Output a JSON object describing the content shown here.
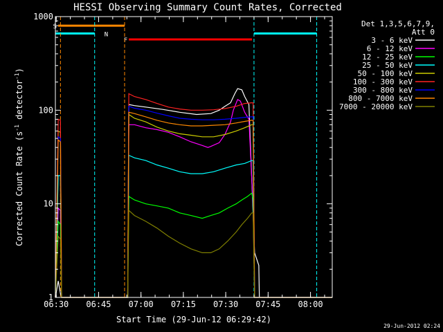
{
  "chart_data": {
    "type": "line",
    "title": "HESSI Observing Summary Count Rates, Corrected",
    "xlabel": "Start Time (29-Jun-12 06:29:42)",
    "ylabel_parts": [
      "Corrected Count Rate (s",
      "-1",
      " detector",
      "-1",
      ")"
    ],
    "x_unit": "minutes since 06:29:42",
    "xlim": [
      0,
      98
    ],
    "ylim": [
      1,
      1000
    ],
    "yscale": "log",
    "xticks": [
      {
        "t": 0.3,
        "label": "06:30"
      },
      {
        "t": 15.3,
        "label": "06:45"
      },
      {
        "t": 30.3,
        "label": "07:00"
      },
      {
        "t": 45.3,
        "label": "07:15"
      },
      {
        "t": 60.3,
        "label": "07:30"
      },
      {
        "t": 75.3,
        "label": "07:45"
      },
      {
        "t": 90.3,
        "label": "08:00"
      }
    ],
    "yticks": [
      {
        "v": 1,
        "label": "1"
      },
      {
        "v": 10,
        "label": "10"
      },
      {
        "v": 100,
        "label": "100"
      },
      {
        "v": 1000,
        "label": "1000"
      }
    ],
    "legend": {
      "header": [
        "Det 1,3,5,6,7,9,",
        "Att 0"
      ],
      "placement": "right"
    },
    "series": [
      {
        "name": "3 - 6 keV",
        "color": "#ffffff",
        "data": [
          [
            0,
            1.0
          ],
          [
            1,
            1.5
          ],
          [
            1.8,
            1.1
          ],
          [
            2.2,
            1.0
          ],
          [
            25.6,
            1.0
          ],
          [
            26,
            115
          ],
          [
            28,
            112
          ],
          [
            32,
            108
          ],
          [
            38,
            102
          ],
          [
            44,
            95
          ],
          [
            50,
            90
          ],
          [
            55,
            92
          ],
          [
            58,
            100
          ],
          [
            60,
            110
          ],
          [
            62,
            120
          ],
          [
            63.5,
            150
          ],
          [
            64.5,
            170
          ],
          [
            66,
            165
          ],
          [
            67,
            140
          ],
          [
            68.5,
            115
          ],
          [
            70.5,
            3.0
          ],
          [
            72,
            2.2
          ],
          [
            72.2,
            1.0
          ],
          [
            98,
            1.0
          ]
        ]
      },
      {
        "name": "6 - 12 keV",
        "color": "#ff00ff",
        "data": [
          [
            0,
            1.0
          ],
          [
            1,
            9.0
          ],
          [
            1.8,
            8.5
          ],
          [
            2.2,
            1.0
          ],
          [
            25.6,
            1.0
          ],
          [
            26,
            70
          ],
          [
            28,
            70
          ],
          [
            32,
            65
          ],
          [
            36,
            62
          ],
          [
            40,
            58
          ],
          [
            44,
            52
          ],
          [
            48,
            46
          ],
          [
            52,
            42
          ],
          [
            54,
            40
          ],
          [
            55,
            41
          ],
          [
            58,
            45
          ],
          [
            60,
            55
          ],
          [
            62,
            75
          ],
          [
            63,
            100
          ],
          [
            64.5,
            130
          ],
          [
            65.5,
            125
          ],
          [
            67,
            95
          ],
          [
            68.5,
            80
          ],
          [
            70,
            9.0
          ],
          [
            70.5,
            1.0
          ],
          [
            98,
            1.0
          ]
        ]
      },
      {
        "name": "12 - 25 keV",
        "color": "#00ff00",
        "data": [
          [
            0,
            1.0
          ],
          [
            1,
            6.5
          ],
          [
            1.8,
            6.0
          ],
          [
            2.2,
            1.0
          ],
          [
            25.6,
            1.0
          ],
          [
            26,
            12
          ],
          [
            28,
            11
          ],
          [
            32,
            10
          ],
          [
            36,
            9.5
          ],
          [
            40,
            9.0
          ],
          [
            44,
            8.0
          ],
          [
            48,
            7.5
          ],
          [
            52,
            7.0
          ],
          [
            55,
            7.5
          ],
          [
            58,
            8.0
          ],
          [
            61,
            9.0
          ],
          [
            64,
            10
          ],
          [
            66,
            11
          ],
          [
            68,
            12
          ],
          [
            69.5,
            13
          ],
          [
            70,
            11
          ],
          [
            70.5,
            1.0
          ],
          [
            98,
            1.0
          ]
        ]
      },
      {
        "name": "25 - 50 keV",
        "color": "#00ffff",
        "data": [
          [
            0,
            1.0
          ],
          [
            1,
            20
          ],
          [
            1.8,
            20
          ],
          [
            2.2,
            1.0
          ],
          [
            25.6,
            1.0
          ],
          [
            26,
            33
          ],
          [
            28,
            31
          ],
          [
            32,
            29
          ],
          [
            36,
            26
          ],
          [
            40,
            24
          ],
          [
            44,
            22
          ],
          [
            48,
            21
          ],
          [
            52,
            21
          ],
          [
            56,
            22
          ],
          [
            60,
            24
          ],
          [
            64,
            26
          ],
          [
            67,
            27
          ],
          [
            69.5,
            29
          ],
          [
            70,
            29
          ],
          [
            70.5,
            1.0
          ],
          [
            98,
            1.0
          ]
        ]
      },
      {
        "name": "50 - 100 keV",
        "color": "#cccc00",
        "data": [
          [
            0,
            1.0
          ],
          [
            1,
            60
          ],
          [
            1.8,
            58
          ],
          [
            2.2,
            1.0
          ],
          [
            25.6,
            1.0
          ],
          [
            26,
            90
          ],
          [
            28,
            82
          ],
          [
            32,
            75
          ],
          [
            36,
            66
          ],
          [
            40,
            60
          ],
          [
            44,
            56
          ],
          [
            48,
            54
          ],
          [
            52,
            52
          ],
          [
            56,
            52
          ],
          [
            60,
            55
          ],
          [
            64,
            60
          ],
          [
            67,
            65
          ],
          [
            69.5,
            70
          ],
          [
            70,
            70
          ],
          [
            70.5,
            1.0
          ],
          [
            98,
            1.0
          ]
        ]
      },
      {
        "name": "100 - 300 keV",
        "color": "#ff2222",
        "data": [
          [
            0,
            1.0
          ],
          [
            1,
            80
          ],
          [
            1.8,
            78
          ],
          [
            2.2,
            1.0
          ],
          [
            25.6,
            1.0
          ],
          [
            26,
            150
          ],
          [
            28,
            140
          ],
          [
            32,
            130
          ],
          [
            36,
            118
          ],
          [
            40,
            108
          ],
          [
            44,
            103
          ],
          [
            48,
            100
          ],
          [
            52,
            100
          ],
          [
            56,
            101
          ],
          [
            60,
            104
          ],
          [
            64,
            110
          ],
          [
            67,
            118
          ],
          [
            69.5,
            120
          ],
          [
            70,
            120
          ],
          [
            70.5,
            1.0
          ],
          [
            98,
            1.0
          ]
        ]
      },
      {
        "name": "300 - 800 keV",
        "color": "#0000ff",
        "data": [
          [
            0,
            1.0
          ],
          [
            1,
            52
          ],
          [
            1.8,
            50
          ],
          [
            2.2,
            1.0
          ],
          [
            25.6,
            1.0
          ],
          [
            26,
            110
          ],
          [
            28,
            105
          ],
          [
            32,
            100
          ],
          [
            36,
            93
          ],
          [
            40,
            87
          ],
          [
            44,
            82
          ],
          [
            48,
            80
          ],
          [
            52,
            79
          ],
          [
            56,
            79
          ],
          [
            60,
            80
          ],
          [
            64,
            82
          ],
          [
            67,
            84
          ],
          [
            69.5,
            85
          ],
          [
            70,
            85
          ],
          [
            70.5,
            1.0
          ],
          [
            98,
            1.0
          ]
        ]
      },
      {
        "name": "800 - 7000 keV",
        "color": "#ff8800",
        "data": [
          [
            0,
            1.0
          ],
          [
            1,
            48
          ],
          [
            1.8,
            46
          ],
          [
            2.2,
            1.0
          ],
          [
            25.6,
            1.0
          ],
          [
            26,
            95
          ],
          [
            28,
            92
          ],
          [
            32,
            85
          ],
          [
            36,
            78
          ],
          [
            40,
            73
          ],
          [
            44,
            70
          ],
          [
            48,
            68
          ],
          [
            52,
            68
          ],
          [
            56,
            69
          ],
          [
            60,
            70
          ],
          [
            64,
            73
          ],
          [
            67,
            76
          ],
          [
            69.5,
            78
          ],
          [
            70,
            78
          ],
          [
            70.5,
            1.0
          ],
          [
            98,
            1.0
          ]
        ]
      },
      {
        "name": "7000 - 20000 keV",
        "color": "#808000",
        "data": [
          [
            0,
            1.0
          ],
          [
            1,
            4.5
          ],
          [
            1.8,
            4.2
          ],
          [
            2.2,
            1.0
          ],
          [
            25.6,
            1.0
          ],
          [
            26,
            8.5
          ],
          [
            28,
            7.5
          ],
          [
            32,
            6.5
          ],
          [
            36,
            5.5
          ],
          [
            40,
            4.5
          ],
          [
            44,
            3.8
          ],
          [
            48,
            3.3
          ],
          [
            52,
            3.0
          ],
          [
            55,
            3.0
          ],
          [
            58,
            3.3
          ],
          [
            61,
            4.0
          ],
          [
            64,
            5.0
          ],
          [
            66,
            6.0
          ],
          [
            68,
            7.0
          ],
          [
            69.5,
            8.0
          ],
          [
            70,
            8.0
          ],
          [
            70.5,
            1.0
          ],
          [
            98,
            1.0
          ]
        ]
      }
    ],
    "flags": [
      {
        "label": "S",
        "color": "#ff8800",
        "level": 800,
        "x0": 1.0,
        "x1": 24.5
      },
      {
        "label": "F",
        "color": "#ff0000",
        "level": 570,
        "x0": 26.0,
        "x1": 69.6
      }
    ],
    "night_bars": {
      "color": "#00ffff",
      "level": 660,
      "segments": [
        [
          0,
          13.9
        ],
        [
          70.3,
          92.5
        ]
      ],
      "label": "N",
      "label_x": 18.0
    },
    "vlines": [
      {
        "t": 1.8,
        "color": "#ff8800"
      },
      {
        "t": 13.9,
        "color": "#00ffff"
      },
      {
        "t": 24.5,
        "color": "#ff8800"
      },
      {
        "t": 70.3,
        "color": "#00ffff"
      },
      {
        "t": 92.5,
        "color": "#00ffff"
      }
    ]
  },
  "footer_date": "29-Jun-2012 02:24"
}
